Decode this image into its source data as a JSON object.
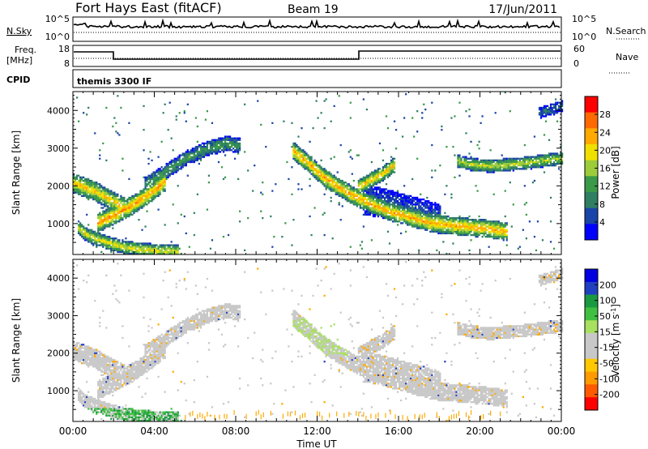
{
  "header": {
    "station": "Fort Hays East (fitACF)",
    "beam": "Beam 19",
    "date": "17/Jun/2011"
  },
  "noise_panel": {
    "left_label": "N.Sky",
    "left_ticks": [
      "10^5",
      "10^0"
    ],
    "right_label": "N.Search",
    "right_ticks": [
      "10^5",
      "10^0"
    ]
  },
  "freq_panel": {
    "left_label_1": "Freq.",
    "left_label_2": "[MHz]",
    "left_ticks": [
      "18",
      "8"
    ],
    "right_label": "Nave",
    "right_ticks": [
      "60",
      "0"
    ]
  },
  "cpid_panel": {
    "label": "CPID",
    "program": "themis 3300 IF"
  },
  "colors": {
    "power_scale": [
      "#0000ff",
      "#1a44a8",
      "#2f7f63",
      "#3a9a48",
      "#9ccc3a",
      "#f0e000",
      "#ffaa00",
      "#ff6a00",
      "#ff0000"
    ],
    "velocity_scale": [
      "#ff0000",
      "#ff5a00",
      "#ff9a00",
      "#ffc800",
      "#c8c8c8",
      "#c8c8c8",
      "#a8e060",
      "#40c040",
      "#1a9a40",
      "#2040c0",
      "#0000e0"
    ]
  },
  "chart_data": [
    {
      "type": "heatmap",
      "name_in_axis": "Power",
      "ylabel": "Slant Range [km]",
      "xlabel": "Time UT",
      "x_ticks": [
        "00:00",
        "04:00",
        "08:00",
        "12:00",
        "16:00",
        "20:00",
        "00:00"
      ],
      "y_ticks": [
        "1000",
        "2000",
        "3000",
        "4000"
      ],
      "xlim": [
        0,
        24
      ],
      "ylim": [
        180,
        4500
      ],
      "colorbar_label": "Power [dB]",
      "colorbar_ticks": [
        "4",
        "8",
        "12",
        "16",
        "20",
        "24",
        "28"
      ],
      "bands": [
        {
          "t": [
            0.0,
            0.5,
            1.0,
            1.5,
            2.0,
            2.5
          ],
          "r": [
            2050,
            1950,
            1850,
            1700,
            1550,
            1400
          ],
          "w": 260,
          "p": 22
        },
        {
          "t": [
            1.2,
            2.0,
            3.0,
            3.8,
            4.5
          ],
          "r": [
            1000,
            1200,
            1500,
            1800,
            2100
          ],
          "w": 250,
          "p": 25
        },
        {
          "t": [
            0.2,
            0.6,
            1.0,
            1.8,
            2.5,
            3.5,
            4.5,
            5.2
          ],
          "r": [
            900,
            700,
            600,
            450,
            350,
            280,
            250,
            230
          ],
          "w": 180,
          "p": 20
        },
        {
          "t": [
            3.5,
            4.5,
            5.5,
            6.5,
            7.5,
            8.2
          ],
          "r": [
            2000,
            2350,
            2700,
            2950,
            3100,
            3050
          ],
          "w": 200,
          "p": 12
        },
        {
          "t": [
            10.8,
            11.5,
            12.2,
            13.0,
            13.8,
            14.6,
            15.5,
            16.5,
            17.5,
            18.5,
            19.5,
            20.5,
            21.3
          ],
          "r": [
            2900,
            2600,
            2250,
            1950,
            1700,
            1500,
            1300,
            1150,
            1000,
            930,
            880,
            830,
            760
          ],
          "w": 240,
          "p": 24
        },
        {
          "t": [
            14.2,
            15.0,
            16.0,
            17.0,
            18.0
          ],
          "r": [
            1600,
            1550,
            1400,
            1250,
            1100
          ],
          "w": 400,
          "p": 7
        },
        {
          "t": [
            14.0,
            14.5,
            15.2,
            15.8
          ],
          "r": [
            1950,
            2100,
            2300,
            2550
          ],
          "w": 200,
          "p": 22
        },
        {
          "t": [
            18.8,
            19.5,
            20.5,
            21.5,
            22.5,
            23.5,
            24.0
          ],
          "r": [
            2650,
            2550,
            2500,
            2550,
            2600,
            2680,
            2700
          ],
          "w": 170,
          "p": 18
        },
        {
          "t": [
            22.8,
            23.5,
            24.0
          ],
          "r": [
            3900,
            4000,
            4100
          ],
          "w": 150,
          "p": 8
        }
      ]
    },
    {
      "type": "heatmap",
      "name_in_axis": "Velocity",
      "ylabel": "Slant Range [km]",
      "xlabel": "Time UT",
      "x_ticks": [
        "00:00",
        "04:00",
        "08:00",
        "12:00",
        "16:00",
        "20:00",
        "00:00"
      ],
      "y_ticks": [
        "1000",
        "2000",
        "3000",
        "4000"
      ],
      "xlim": [
        0,
        24
      ],
      "ylim": [
        180,
        4500
      ],
      "colorbar_label": "Velocity [m s",
      "colorbar_label_sup": "-1",
      "colorbar_label_end": "]",
      "colorbar_ticks": [
        "200",
        "100",
        "50",
        "15",
        "-15",
        "-50",
        "-100",
        "-200"
      ]
    }
  ]
}
